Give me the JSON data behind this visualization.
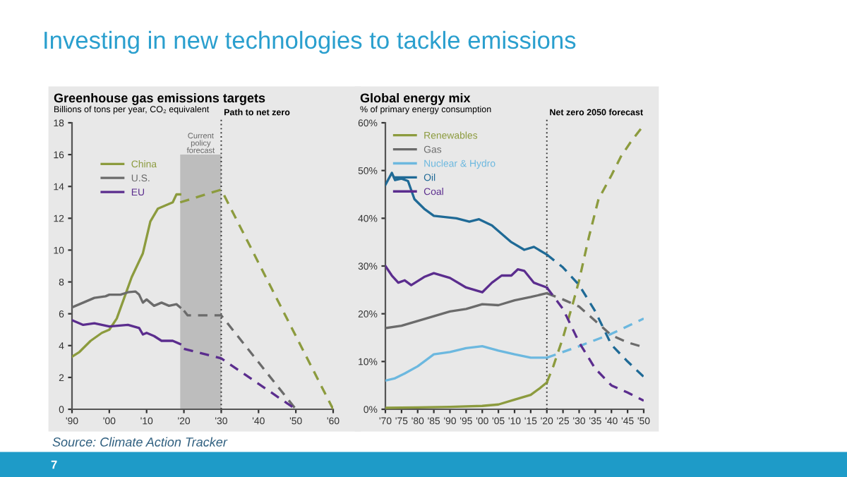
{
  "chart_data": [
    {
      "type": "line",
      "title": "Greenhouse gas emissions targets",
      "subtitle": "Billions of tons per year, CO₂ equivalent",
      "annotations": [
        "Investing in new technologies to tackle emissions",
        "Source: Climate Action Tracker",
        "7"
      ],
      "series": [
        {
          "name": "China",
          "color": "#8c9b3e",
          "line_style": "solid",
          "x": [
            1990,
            1992,
            1995,
            1998,
            2000,
            2002,
            2004,
            2006,
            2008,
            2009,
            2011,
            2013,
            2015,
            2017,
            2018,
            2019
          ],
          "values": [
            3.3,
            3.6,
            4.3,
            4.8,
            5.0,
            5.7,
            7.0,
            8.3,
            9.3,
            9.8,
            11.8,
            12.6,
            12.8,
            13.0,
            13.5,
            13.5
          ]
        },
        {
          "name": "U.S.",
          "color": "#6b6b6b",
          "line_style": "solid",
          "x": [
            1990,
            1993,
            1996,
            1999,
            2000,
            2003,
            2005,
            2007,
            2008,
            2009,
            2010,
            2012,
            2014,
            2016,
            2018,
            2019
          ],
          "values": [
            6.4,
            6.7,
            7.0,
            7.1,
            7.2,
            7.2,
            7.35,
            7.4,
            7.2,
            6.7,
            6.9,
            6.5,
            6.7,
            6.5,
            6.6,
            6.4
          ]
        },
        {
          "name": "EU",
          "color": "#5b2d8e",
          "line_style": "solid",
          "x": [
            1990,
            1993,
            1996,
            2000,
            2005,
            2008,
            2009,
            2010,
            2012,
            2014,
            2017,
            2019
          ],
          "values": [
            5.6,
            5.3,
            5.4,
            5.2,
            5.3,
            5.1,
            4.7,
            4.8,
            4.6,
            4.3,
            4.3,
            4.1
          ]
        },
        {
          "color": "#8c9b3e",
          "line_style": "dashed",
          "x": [
            2019,
            2030,
            2060
          ],
          "values": [
            13.0,
            13.8,
            0
          ]
        },
        {
          "color": "#6b6b6b",
          "line_style": "dashed",
          "x": [
            2020,
            2021,
            2025,
            2030,
            2050
          ],
          "values": [
            6.2,
            5.9,
            5.9,
            5.9,
            0
          ]
        },
        {
          "color": "#5b2d8e",
          "line_style": "dashed",
          "x": [
            2020,
            2030,
            2050
          ],
          "values": [
            3.8,
            3.2,
            0
          ]
        }
      ],
      "xlim": [
        1990,
        2060
      ],
      "xticks": [
        {
          "value": 1990,
          "label": "'90"
        },
        {
          "value": 2000,
          "label": "'00"
        },
        {
          "value": 2010,
          "label": "'10"
        },
        {
          "value": 2020,
          "label": "'20"
        },
        {
          "value": 2030,
          "label": "'30"
        },
        {
          "value": 2040,
          "label": "'40"
        },
        {
          "value": 2050,
          "label": "'50"
        },
        {
          "value": 2060,
          "label": "'60"
        }
      ],
      "ylim": [
        0,
        18
      ],
      "yticks": [
        0,
        2,
        4,
        6,
        8,
        10,
        12,
        14,
        16,
        18
      ],
      "bands": [
        {
          "axis": "x",
          "from": 2019,
          "to": 2030,
          "label": "Current policy forecast",
          "color": "#bdbdbd"
        }
      ],
      "ref_lines": [
        {
          "axis": "x",
          "value": 2030,
          "label": "Path to net zero",
          "line_style": "dotted",
          "color": "#333333"
        }
      ],
      "legend": "top left",
      "grid": false
    },
    {
      "type": "line",
      "title": "Global energy mix",
      "subtitle": "% of primary energy consumption",
      "series": [
        {
          "name": "Renewables",
          "color": "#8c9b3e",
          "line_style": "solid",
          "x": [
            1970,
            1980,
            1990,
            2000,
            2005,
            2010,
            2015,
            2018,
            2020
          ],
          "values": [
            0.3,
            0.4,
            0.5,
            0.7,
            1,
            2,
            3,
            4.5,
            5.6
          ]
        },
        {
          "name": "Gas",
          "color": "#6b6b6b",
          "line_style": "solid",
          "x": [
            1970,
            1975,
            1980,
            1985,
            1990,
            1995,
            2000,
            2005,
            2010,
            2015,
            2020
          ],
          "values": [
            17,
            17.5,
            18.5,
            19.5,
            20.5,
            21,
            22,
            21.8,
            22.8,
            23.5,
            24.3
          ]
        },
        {
          "name": "Nuclear & Hydro",
          "color": "#6cb8df",
          "line_style": "solid",
          "x": [
            1970,
            1973,
            1976,
            1980,
            1985,
            1990,
            1995,
            2000,
            2005,
            2010,
            2015,
            2020
          ],
          "values": [
            6,
            6.5,
            7.5,
            9,
            11.5,
            12,
            12.8,
            13.2,
            12.3,
            11.5,
            10.8,
            10.8
          ]
        },
        {
          "name": "Oil",
          "color": "#1f6a96",
          "line_style": "solid",
          "x": [
            1970,
            1972,
            1973,
            1975,
            1977,
            1979,
            1982,
            1985,
            1992,
            1996,
            1999,
            2003,
            2009,
            2013,
            2016,
            2020
          ],
          "values": [
            47,
            49.5,
            48,
            48.3,
            47.8,
            44,
            42,
            40.5,
            40,
            39.3,
            39.8,
            38.5,
            35,
            33.4,
            34,
            32.4
          ]
        },
        {
          "name": "Coal",
          "color": "#5b2d8e",
          "line_style": "solid",
          "x": [
            1970,
            1972,
            1974,
            1976,
            1978,
            1982,
            1985,
            1990,
            1995,
            2000,
            2003,
            2006,
            2009,
            2011,
            2013,
            2016,
            2020
          ],
          "values": [
            30,
            28,
            26.5,
            27,
            26,
            27.7,
            28.5,
            27.5,
            25.5,
            24.5,
            26.5,
            28,
            28,
            29.3,
            29,
            26.5,
            25.5
          ]
        },
        {
          "color": "#8c9b3e",
          "line_style": "dashed",
          "x": [
            2020,
            2022,
            2025,
            2028,
            2030,
            2033,
            2036,
            2040,
            2043,
            2046,
            2050
          ],
          "values": [
            5.6,
            9,
            15,
            22,
            27,
            36,
            44,
            49,
            53,
            56,
            59.5
          ]
        },
        {
          "color": "#6b6b6b",
          "line_style": "dashed",
          "x": [
            2020,
            2025,
            2030,
            2035,
            2040,
            2045,
            2050
          ],
          "values": [
            24.3,
            23,
            21.5,
            18.5,
            15.5,
            14,
            13
          ]
        },
        {
          "color": "#6cb8df",
          "line_style": "dashed",
          "x": [
            2020,
            2030,
            2040,
            2050
          ],
          "values": [
            10.8,
            13.2,
            15.8,
            19
          ]
        },
        {
          "color": "#1f6a96",
          "line_style": "dashed",
          "x": [
            2020,
            2025,
            2030,
            2035,
            2040,
            2045,
            2050
          ],
          "values": [
            32.4,
            29.7,
            26,
            20.5,
            13.5,
            10,
            6.8
          ]
        },
        {
          "color": "#5b2d8e",
          "line_style": "dashed",
          "x": [
            2020,
            2025,
            2030,
            2035,
            2040,
            2045,
            2050
          ],
          "values": [
            25.5,
            21,
            14,
            8.5,
            5,
            3.5,
            1.8
          ]
        }
      ],
      "xlim": [
        1970,
        2050
      ],
      "xticks": [
        {
          "value": 1970,
          "label": "'70"
        },
        {
          "value": 1975,
          "label": "'75"
        },
        {
          "value": 1980,
          "label": "'80"
        },
        {
          "value": 1985,
          "label": "'85"
        },
        {
          "value": 1990,
          "label": "'90"
        },
        {
          "value": 1995,
          "label": "'95"
        },
        {
          "value": 2000,
          "label": "'00"
        },
        {
          "value": 2005,
          "label": "'05"
        },
        {
          "value": 2010,
          "label": "'10"
        },
        {
          "value": 2015,
          "label": "'15"
        },
        {
          "value": 2020,
          "label": "'20"
        },
        {
          "value": 2025,
          "label": "'25"
        },
        {
          "value": 2030,
          "label": "'30"
        },
        {
          "value": 2035,
          "label": "'35"
        },
        {
          "value": 2040,
          "label": "'40"
        },
        {
          "value": 2045,
          "label": "'45"
        },
        {
          "value": 2050,
          "label": "'50"
        }
      ],
      "ylim": [
        0,
        60
      ],
      "yticks": [
        {
          "value": 0,
          "label": "0%"
        },
        {
          "value": 10,
          "label": "10%"
        },
        {
          "value": 20,
          "label": "20%"
        },
        {
          "value": 30,
          "label": "30%"
        },
        {
          "value": 40,
          "label": "40%"
        },
        {
          "value": 50,
          "label": "50%"
        },
        {
          "value": 60,
          "label": "60%"
        }
      ],
      "ref_lines": [
        {
          "axis": "x",
          "value": 2020,
          "label": "Net zero 2050 forecast",
          "line_style": "dotted",
          "color": "#333333"
        }
      ],
      "legend": "top left",
      "grid": false
    }
  ]
}
